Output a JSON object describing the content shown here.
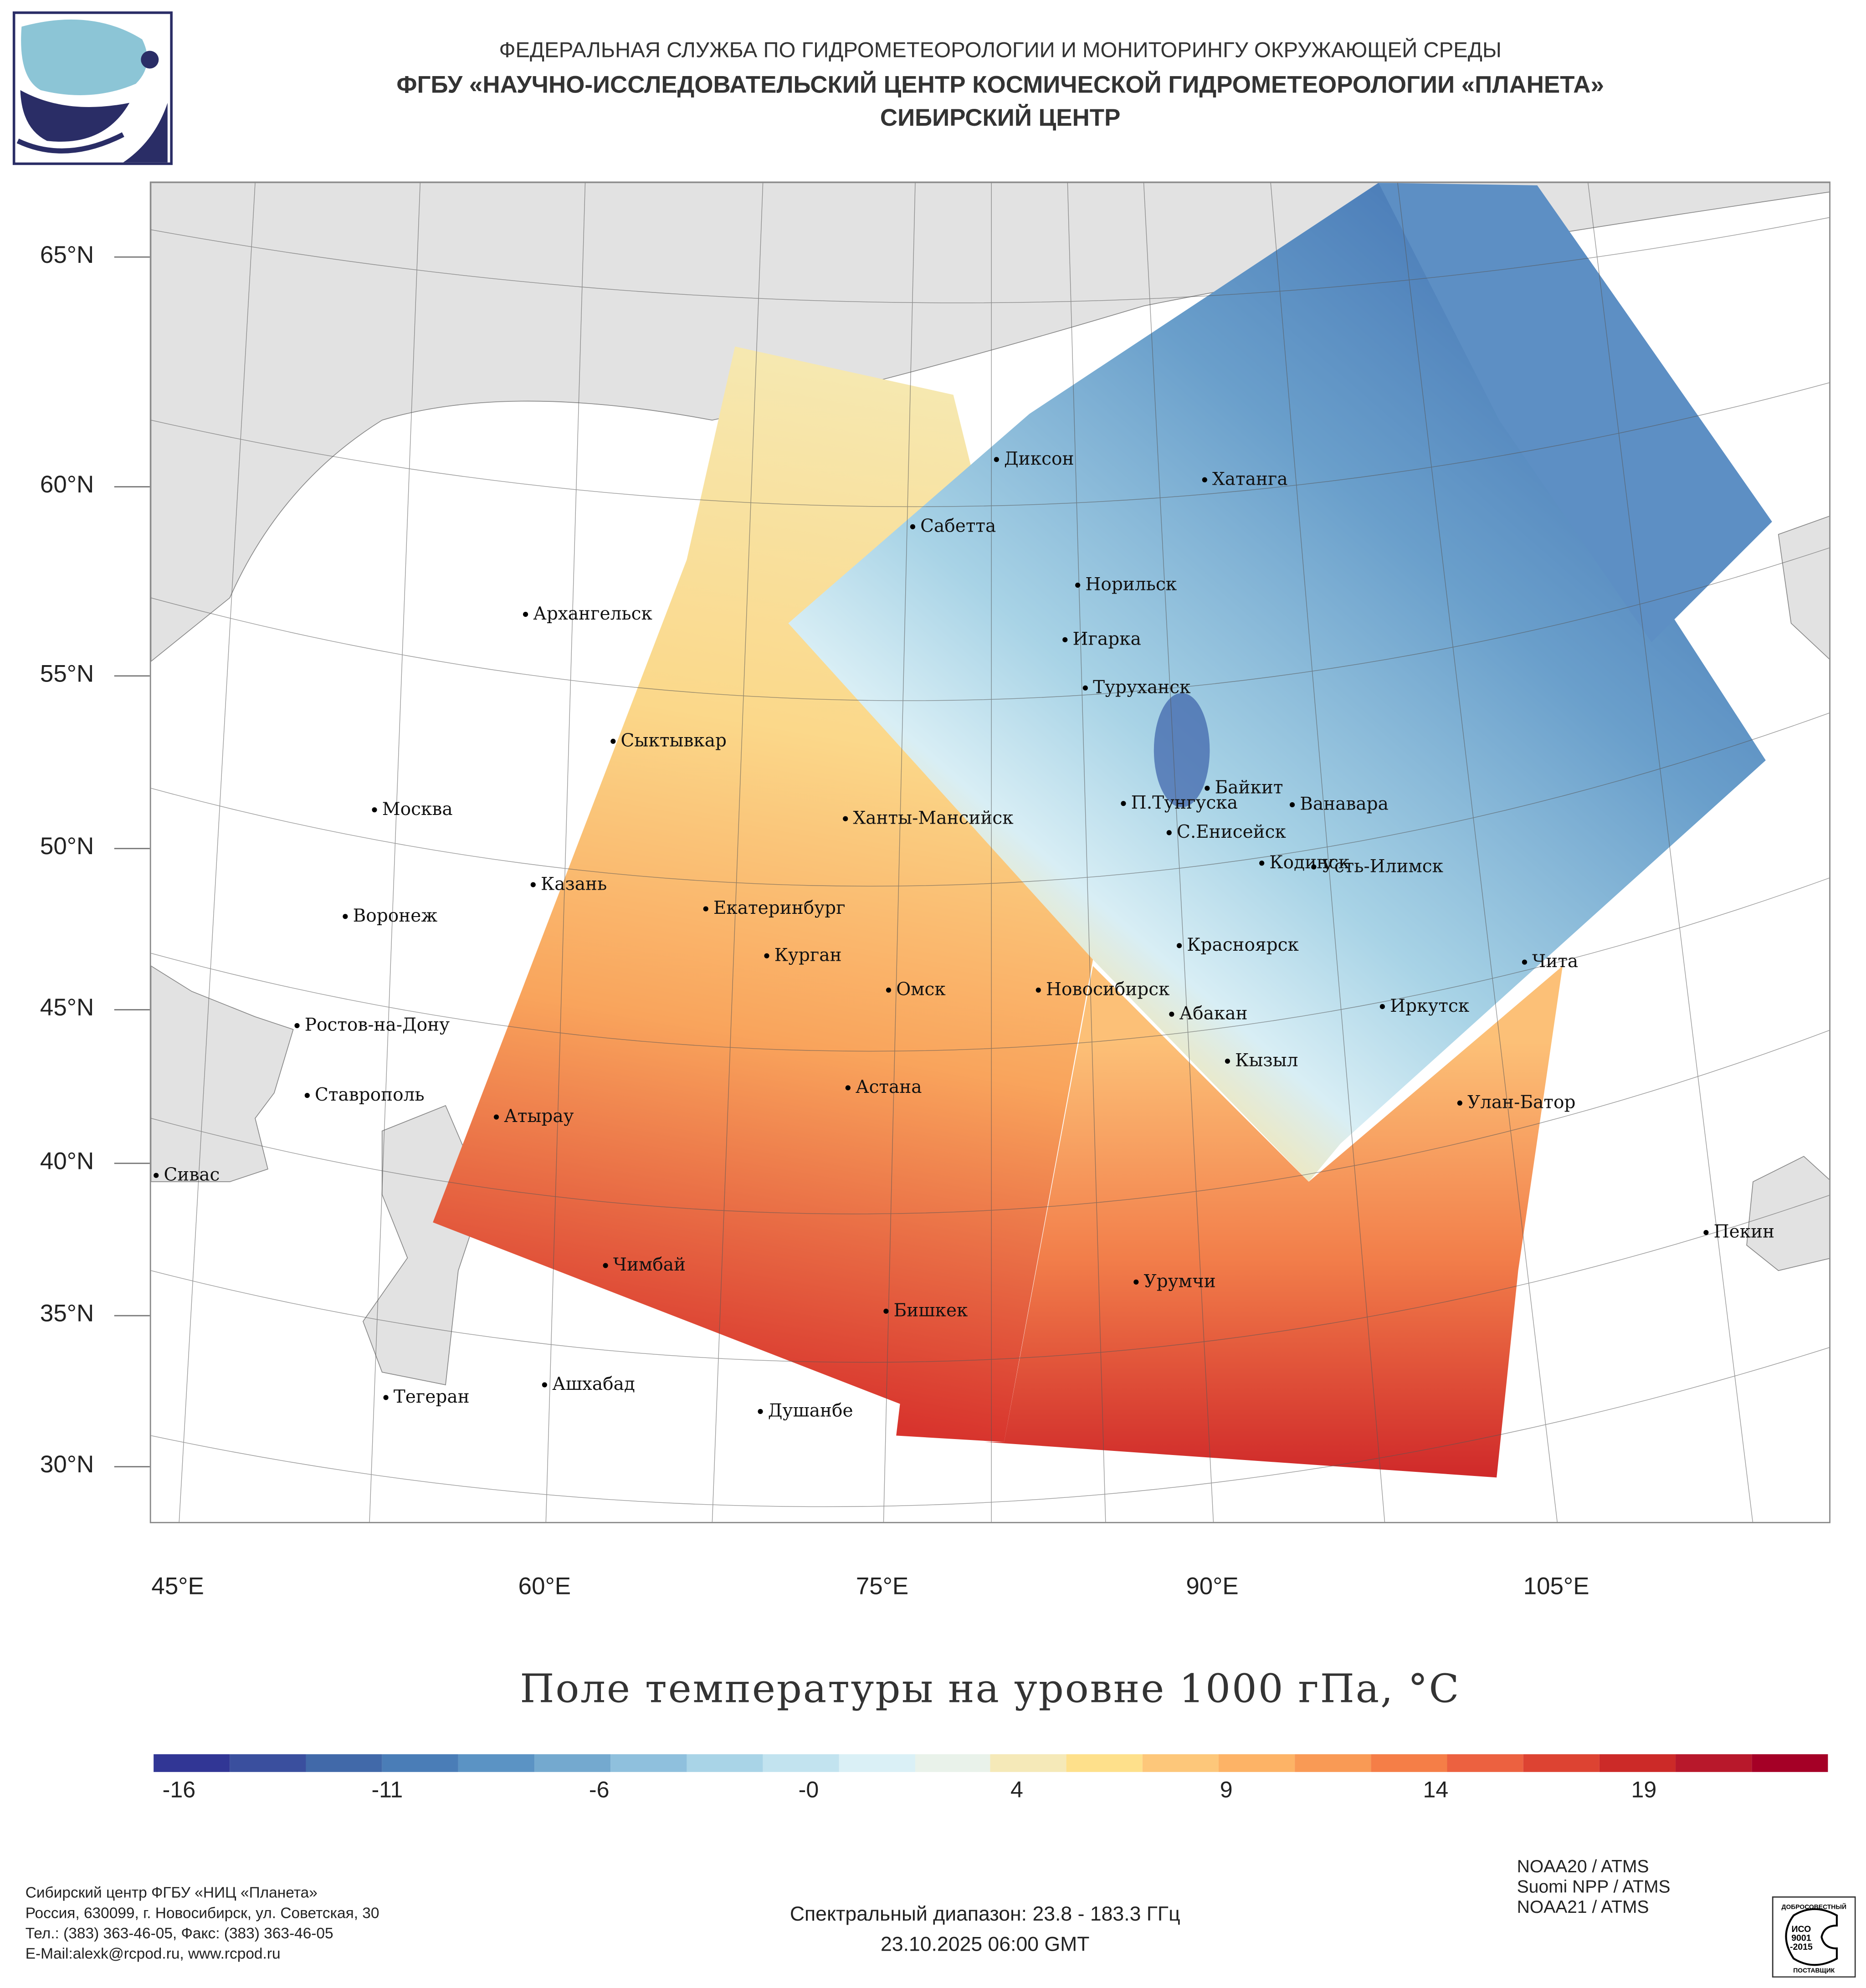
{
  "header": {
    "agency": "ФЕДЕРАЛЬНАЯ СЛУЖБА ПО ГИДРОМЕТЕОРОЛОГИИ И МОНИТОРИНГУ ОКРУЖАЮЩЕЙ СРЕДЫ",
    "institute": "ФГБУ «НАУЧНО-ИССЛЕДОВАТЕЛЬСКИЙ ЦЕНТР КОСМИЧЕСКОЙ ГИДРОМЕТЕОРОЛОГИИ «ПЛАНЕТА»",
    "center": "СИБИРСКИЙ ЦЕНТР"
  },
  "map": {
    "lat_labels": [
      "65°N",
      "60°N",
      "55°N",
      "50°N",
      "45°N",
      "40°N",
      "35°N",
      "30°N"
    ],
    "lon_labels": [
      "45°E",
      "60°E",
      "75°E",
      "90°E",
      "105°E"
    ],
    "cities": [
      "Диксон",
      "Хатанга",
      "Сабетта",
      "Норильск",
      "Игарка",
      "Туруханск",
      "Архангельск",
      "Сыктывкар",
      "Москва",
      "Байкит",
      "П.Тунгуска",
      "Ванавара",
      "Ханты-Мансийск",
      "С.Енисейск",
      "Кодинск",
      "Усть-Илимск",
      "Казань",
      "Екатеринбург",
      "Воронеж",
      "Курган",
      "Красноярск",
      "Чита",
      "Омск",
      "Новосибирск",
      "Абакан",
      "Иркутск",
      "Ростов-на-Дону",
      "Кызыл",
      "Астана",
      "Ставрополь",
      "Улан-Батор",
      "Атырау",
      "Сивас",
      "Пекин",
      "Чимбай",
      "Урумчи",
      "Бишкек",
      "Ашхабад",
      "Тегеран",
      "Душанбе"
    ]
  },
  "colorbar": {
    "title": "Поле температуры на уровне 1000 гПа, °C",
    "tick_labels": [
      "-16",
      "-11",
      "-6",
      "-0",
      "4",
      "9",
      "14",
      "19"
    ],
    "colors": [
      "#313695",
      "#3a4f9e",
      "#4169a9",
      "#4a7db7",
      "#5b93c4",
      "#74a9cf",
      "#8fc0dd",
      "#a9d4e7",
      "#c2e3ef",
      "#daf0f6",
      "#e9f2ea",
      "#f5e9b8",
      "#fee08b",
      "#fdc77a",
      "#fdb366",
      "#f99a55",
      "#f57e47",
      "#ec6140",
      "#dd4332",
      "#cc2a28",
      "#b8182b",
      "#a50026"
    ]
  },
  "footer": {
    "contacts": [
      "Сибирский центр ФГБУ «НИЦ «Планета»",
      "Россия, 630099, г. Новосибирск, ул. Советская, 30",
      "Тел.: (383) 363-46-05, Факс: (383) 363-46-05",
      "E-Mail:alexk@rcpod.ru, www.rcpod.ru"
    ],
    "spectral": "Спектральный диапазон: 23.8 - 183.3 ГГц",
    "datetime": "23.10.2025 06:00 GMT",
    "satellites": [
      "NOAA20 / ATMS",
      "Suomi NPP / ATMS",
      "NOAA21 / ATMS"
    ],
    "iso_badge": {
      "top": "ДОБРОСОВЕСТНЫЙ",
      "mid": "ИСО 9001 -2015",
      "bottom": "ПОСТАВЩИК"
    }
  }
}
